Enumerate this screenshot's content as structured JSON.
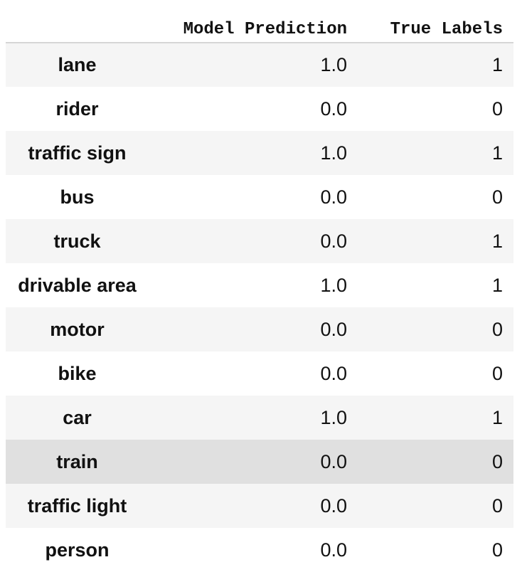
{
  "table": {
    "columns": [
      "",
      "Model Prediction",
      "True Labels"
    ],
    "rows": [
      {
        "label": "lane",
        "prediction": "1.0",
        "truth": "1"
      },
      {
        "label": "rider",
        "prediction": "0.0",
        "truth": "0"
      },
      {
        "label": "traffic sign",
        "prediction": "1.0",
        "truth": "1"
      },
      {
        "label": "bus",
        "prediction": "0.0",
        "truth": "0"
      },
      {
        "label": "truck",
        "prediction": "0.0",
        "truth": "1"
      },
      {
        "label": "drivable area",
        "prediction": "1.0",
        "truth": "1"
      },
      {
        "label": "motor",
        "prediction": "0.0",
        "truth": "0"
      },
      {
        "label": "bike",
        "prediction": "0.0",
        "truth": "0"
      },
      {
        "label": "car",
        "prediction": "1.0",
        "truth": "1"
      },
      {
        "label": "train",
        "prediction": "0.0",
        "truth": "0"
      },
      {
        "label": "traffic light",
        "prediction": "0.0",
        "truth": "0"
      },
      {
        "label": "person",
        "prediction": "0.0",
        "truth": "0"
      }
    ]
  },
  "style": {
    "striped_row_color": "#f5f5f5",
    "hovered_row_color": "#e0e0e0",
    "hovered_row_label": "train"
  }
}
